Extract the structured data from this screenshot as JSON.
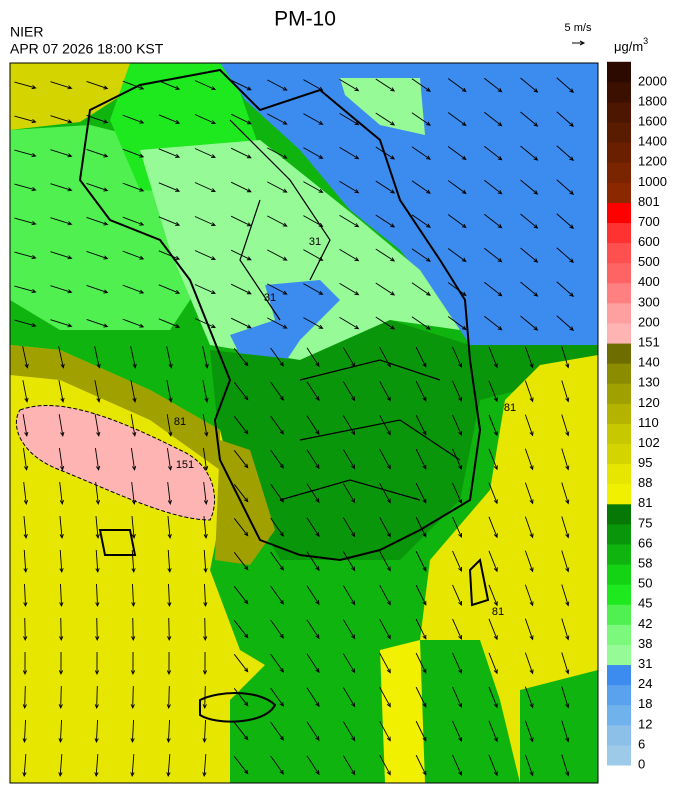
{
  "header": {
    "title": "PM-10",
    "agency": "NIER",
    "datetime": "APR 07 2026 18:00 KST",
    "wind_scale": "5 m/s",
    "unit": "μg/m",
    "unit_power": "3"
  },
  "colorbar": {
    "levels": [
      "0",
      "6",
      "12",
      "18",
      "24",
      "31",
      "38",
      "42",
      "45",
      "50",
      "58",
      "66",
      "75",
      "81",
      "88",
      "95",
      "102",
      "110",
      "120",
      "130",
      "140",
      "151",
      "200",
      "300",
      "400",
      "500",
      "600",
      "700",
      "801",
      "1000",
      "1200",
      "1400",
      "1600",
      "1800",
      "2000"
    ],
    "colors": [
      "#9ccae8",
      "#8cc0e8",
      "#70b2ec",
      "#5aa2ee",
      "#3c8cf0",
      "#96fa96",
      "#7cf87c",
      "#50f050",
      "#1ee81e",
      "#14d214",
      "#0fb40f",
      "#0a960a",
      "#067806",
      "#f0f000",
      "#e6e600",
      "#d4d400",
      "#c8c800",
      "#b4b400",
      "#a0a000",
      "#8c8c00",
      "#6e6e00",
      "#ffb4b4",
      "#ffa0a0",
      "#ff8080",
      "#ff6464",
      "#ff5050",
      "#ff3232",
      "#ff0000",
      "#8c2800",
      "#7a2400",
      "#6a2000",
      "#5a1c00",
      "#4c1600",
      "#3c1000",
      "#2c0a00"
    ]
  },
  "contour_labels": [
    "81",
    "151",
    "31",
    "31",
    "81",
    "81"
  ]
}
